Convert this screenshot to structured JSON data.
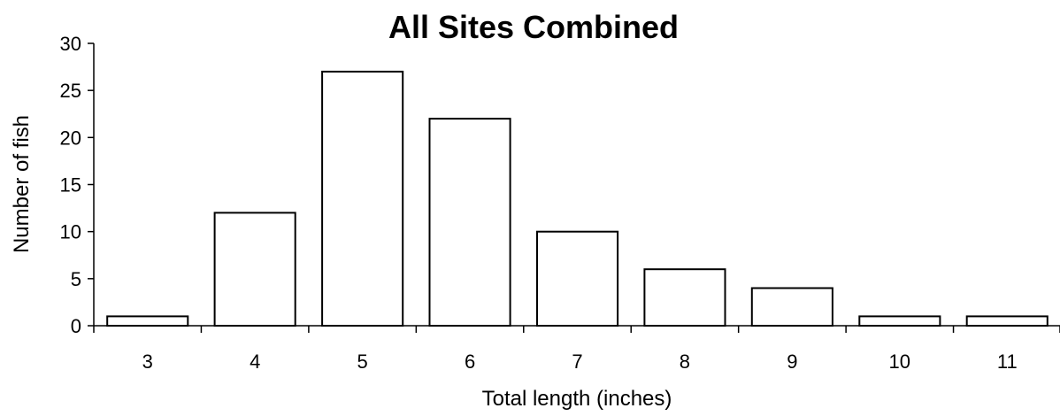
{
  "chart_data": {
    "type": "bar",
    "title": "All Sites Combined",
    "xlabel": "Total length (inches)",
    "ylabel": "Number of fish",
    "categories": [
      "3",
      "4",
      "5",
      "6",
      "7",
      "8",
      "9",
      "10",
      "11"
    ],
    "values": [
      1,
      12,
      27,
      22,
      10,
      6,
      4,
      1,
      1
    ],
    "ylim": [
      0,
      30
    ],
    "yticks": [
      "0",
      "5",
      "10",
      "15",
      "20",
      "25",
      "30"
    ],
    "grid": false,
    "legend": "none",
    "colors": {
      "bar_fill": "#ffffff",
      "bar_stroke": "#000000",
      "axis": "#000000",
      "text": "#000000"
    }
  }
}
